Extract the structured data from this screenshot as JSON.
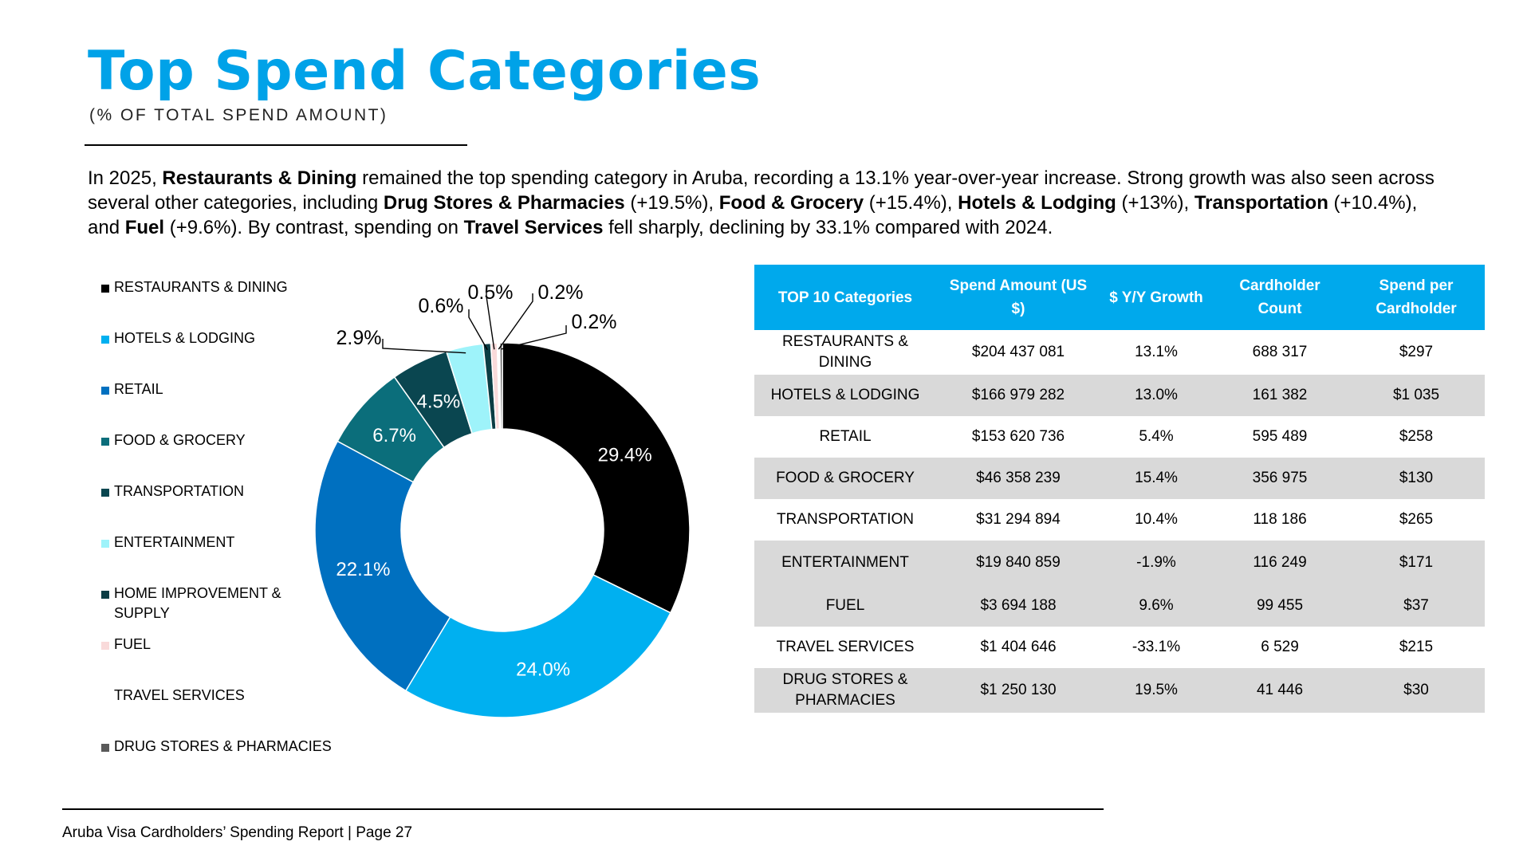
{
  "header": {
    "title": "Top Spend Categories",
    "subtitle": "(% OF TOTAL SPEND AMOUNT)"
  },
  "intro": [
    {
      "text": "In 2025, ",
      "bold": false
    },
    {
      "text": "Restaurants & Dining",
      "bold": true
    },
    {
      "text": " remained the top spending category in Aruba, recording a 13.1% year-over-year increase. Strong growth was also seen across several other categories, including ",
      "bold": false
    },
    {
      "text": "Drug Stores & Pharmacies",
      "bold": true
    },
    {
      "text": " (+19.5%), ",
      "bold": false
    },
    {
      "text": "Food & Grocery",
      "bold": true
    },
    {
      "text": " (+15.4%), ",
      "bold": false
    },
    {
      "text": "Hotels & Lodging",
      "bold": true
    },
    {
      "text": " (+13%), ",
      "bold": false
    },
    {
      "text": "Transportation",
      "bold": true
    },
    {
      "text": " (+10.4%), and ",
      "bold": false
    },
    {
      "text": "Fuel",
      "bold": true
    },
    {
      "text": " (+9.6%). By contrast, spending on ",
      "bold": false
    },
    {
      "text": "Travel Services",
      "bold": true
    },
    {
      "text": " fell sharply, declining by 33.1% compared with 2024.",
      "bold": false
    }
  ],
  "chart_data": {
    "type": "pie",
    "variant": "donut",
    "title": "Top Spend Categories (% of total spend amount)",
    "legend_position": "left",
    "unit": "%",
    "slices": [
      {
        "label": "RESTAURANTS & DINING",
        "value": 29.4,
        "display": "29.4%",
        "color": "#000000"
      },
      {
        "label": "HOTELS & LODGING",
        "value": 24.0,
        "display": "24.0%",
        "color": "#00B0F0"
      },
      {
        "label": "RETAIL",
        "value": 22.1,
        "display": "22.1%",
        "color": "#0070C0"
      },
      {
        "label": "FOOD & GROCERY",
        "value": 6.7,
        "display": "6.7%",
        "color": "#0B6E7B"
      },
      {
        "label": "TRANSPORTATION",
        "value": 4.5,
        "display": "4.5%",
        "color": "#0A4650"
      },
      {
        "label": "ENTERTAINMENT",
        "value": 2.9,
        "display": "2.9%",
        "color": "#9EF3FA"
      },
      {
        "label": "HOME IMPROVEMENT & SUPPLY",
        "value": 0.6,
        "display": "0.6%",
        "color": "#0B3D44"
      },
      {
        "label": "FUEL",
        "value": 0.5,
        "display": "0.5%",
        "color": "#F9DADA"
      },
      {
        "label": "TRAVEL SERVICES",
        "value": 0.2,
        "display": "0.2%",
        "color": "#FFFFFF"
      },
      {
        "label": "DRUG STORES & PHARMACIES",
        "value": 0.2,
        "display": "0.2%",
        "color": "#5A5A5A"
      }
    ]
  },
  "table": {
    "headers": [
      "TOP 10 Categories",
      "Spend Amount (US $)",
      "$ Y/Y Growth",
      "Cardholder Count",
      "Spend per Cardholder"
    ],
    "rows": [
      [
        "RESTAURANTS & DINING",
        "$204 437 081",
        "13.1%",
        "688 317",
        "$297"
      ],
      [
        "HOTELS & LODGING",
        "$166 979 282",
        "13.0%",
        "161 382",
        "$1 035"
      ],
      [
        "RETAIL",
        "$153 620 736",
        "5.4%",
        "595 489",
        "$258"
      ],
      [
        "FOOD & GROCERY",
        "$46 358 239",
        "15.4%",
        "356 975",
        "$130"
      ],
      [
        "TRANSPORTATION",
        "$31 294 894",
        "10.4%",
        "118 186",
        "$265"
      ],
      [
        "ENTERTAINMENT",
        "$19 840 859",
        "-1.9%",
        "116 249",
        "$171"
      ],
      [
        "FUEL",
        "$3 694 188",
        "9.6%",
        "99 455",
        "$37"
      ],
      [
        "TRAVEL SERVICES",
        "$1 404 646",
        "-33.1%",
        "6 529",
        "$215"
      ],
      [
        "DRUG STORES & PHARMACIES",
        "$1 250 130",
        "19.5%",
        "41 446",
        "$30"
      ]
    ]
  },
  "footer": {
    "text": "Aruba Visa Cardholders’ Spending Report | Page 27"
  },
  "colors": {
    "accent": "#00A2E8",
    "table_header": "#00A9EC",
    "row_shade": "#D9D9D9"
  }
}
